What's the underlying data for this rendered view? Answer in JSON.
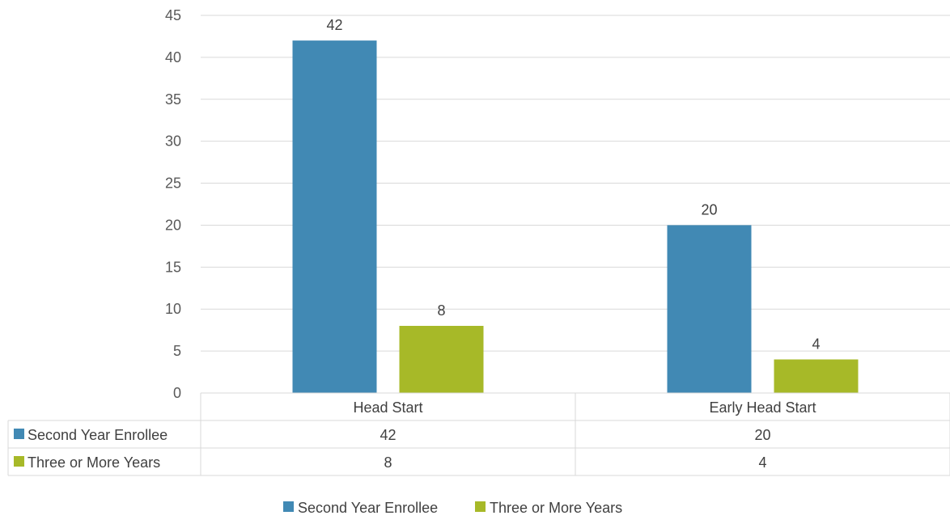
{
  "chart_data": {
    "type": "bar",
    "title": "",
    "xlabel": "",
    "ylabel": "",
    "categories": [
      "Head Start",
      "Early Head Start"
    ],
    "series": [
      {
        "name": "Second Year Enrollee",
        "values": [
          42,
          20
        ],
        "color": "#4189B4"
      },
      {
        "name": "Three or More Years",
        "values": [
          8,
          4
        ],
        "color": "#A7B928"
      }
    ],
    "ylim": [
      0,
      45
    ],
    "y_ticks": [
      0,
      5,
      10,
      15,
      20,
      25,
      30,
      35,
      40,
      45
    ],
    "grid": true,
    "data_labels": true,
    "data_table": true,
    "legend": "bottom"
  }
}
